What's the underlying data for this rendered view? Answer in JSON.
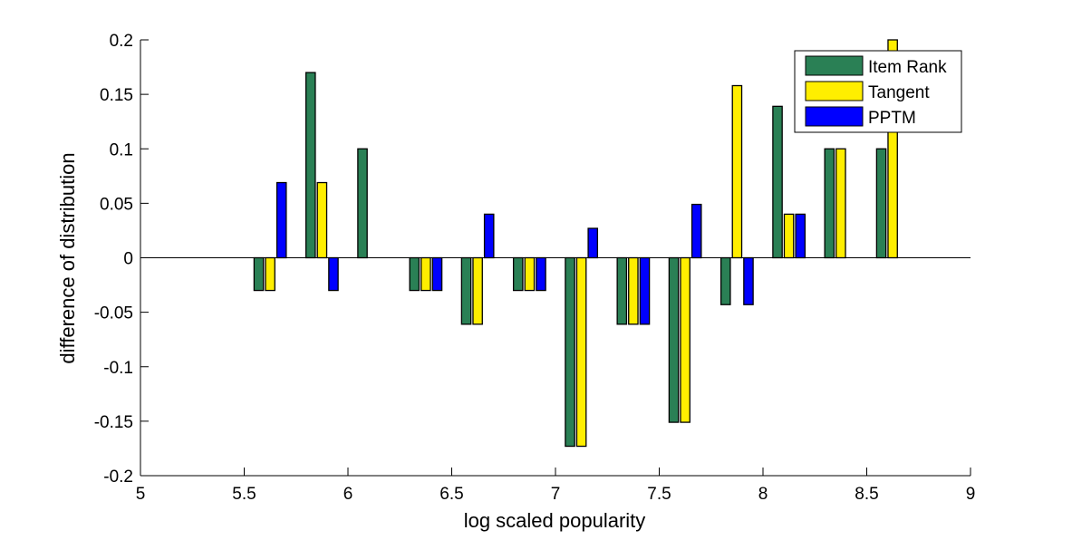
{
  "chart_data": {
    "type": "bar",
    "title": "",
    "xlabel": "log scaled popularity",
    "ylabel": "difference of distribution",
    "xlim": [
      5,
      9
    ],
    "ylim": [
      -0.2,
      0.2
    ],
    "xticks": [
      "5",
      "5.5",
      "6",
      "6.5",
      "7",
      "7.5",
      "8",
      "8.5",
      "9"
    ],
    "yticks": [
      "-0.2",
      "-0.15",
      "-0.1",
      "-0.05",
      "0",
      "0.05",
      "0.1",
      "0.15",
      "0.2"
    ],
    "x": [
      5.625,
      5.875,
      6.125,
      6.375,
      6.625,
      6.875,
      7.125,
      7.375,
      7.625,
      7.875,
      8.125,
      8.375,
      8.625
    ],
    "series": [
      {
        "name": "Item Rank",
        "color": "#2a8055",
        "values": [
          -0.03,
          0.17,
          0.1,
          -0.03,
          -0.061,
          -0.03,
          -0.173,
          -0.061,
          -0.151,
          -0.043,
          0.139,
          0.1,
          0.1
        ]
      },
      {
        "name": "Tangent",
        "color": "#ffee00",
        "values": [
          -0.03,
          0.069,
          0,
          -0.03,
          -0.061,
          -0.03,
          -0.173,
          -0.061,
          -0.151,
          0.158,
          0.04,
          0.1,
          0.2
        ]
      },
      {
        "name": "PPTM",
        "color": "#0000ff",
        "values": [
          0.069,
          -0.03,
          0,
          -0.03,
          0.04,
          -0.03,
          0.027,
          -0.061,
          0.049,
          -0.043,
          0.04,
          0,
          0
        ]
      }
    ],
    "grid": false,
    "legend": "top-right"
  }
}
